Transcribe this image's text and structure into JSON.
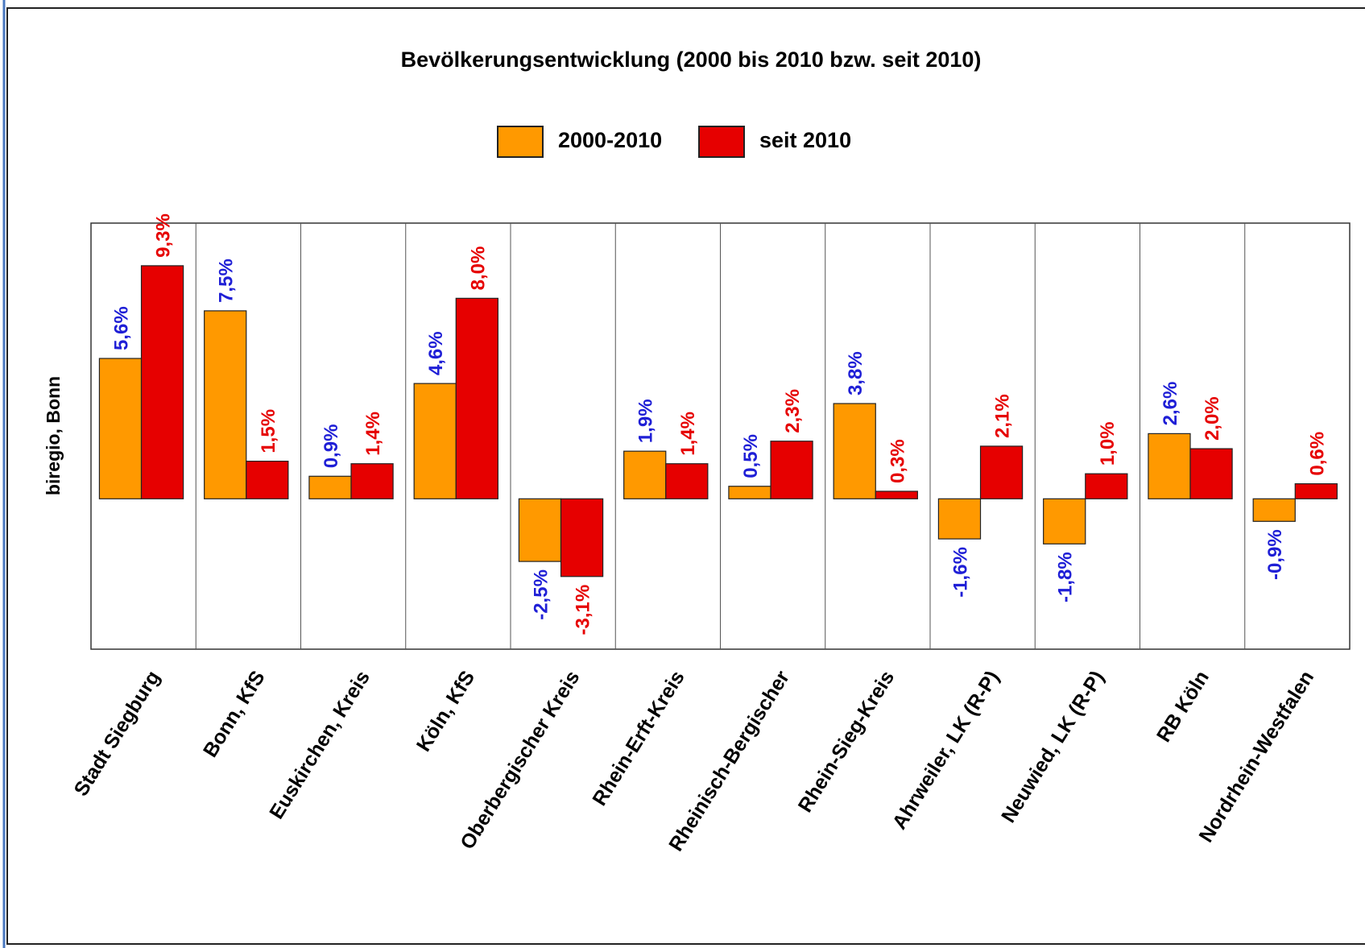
{
  "chart_data": {
    "type": "bar",
    "title": "Bevölkerungsentwicklung (2000 bis 2010 bzw. seit 2010)",
    "y_label": "biregio, Bonn",
    "categories": [
      "Stadt Siegburg",
      "Bonn, KfS",
      "Euskirchen, Kreis",
      "Köln, KfS",
      "Oberbergischer Kreis",
      "Rhein-Erft-Kreis",
      "Rheinisch-Bergischer",
      "Rhein-Sieg-Kreis",
      "Ahrweiler, LK (R-P)",
      "Neuwied, LK (R-P)",
      "RB Köln",
      "Nordrhein-Westfalen"
    ],
    "series": [
      {
        "name": "2000-2010",
        "color": "#ff9900",
        "label_color": "#1f1fd6",
        "values": [
          5.6,
          7.5,
          0.9,
          4.6,
          -2.5,
          1.9,
          0.5,
          3.8,
          -1.6,
          -1.8,
          2.6,
          -0.9
        ],
        "value_labels": [
          "5,6%",
          "7,5%",
          "0,9%",
          "4,6%",
          "-2,5%",
          "1,9%",
          "0,5%",
          "3,8%",
          "-1,6%",
          "-1,8%",
          "2,6%",
          "-0,9%"
        ]
      },
      {
        "name": "seit 2010",
        "color": "#e60000",
        "label_color": "#e60000",
        "values": [
          9.3,
          1.5,
          1.4,
          8.0,
          -3.1,
          1.4,
          2.3,
          0.3,
          2.1,
          1.0,
          2.0,
          0.6
        ],
        "value_labels": [
          "9,3%",
          "1,5%",
          "1,4%",
          "8,0%",
          "-3,1%",
          "1,4%",
          "2,3%",
          "0,3%",
          "2,1%",
          "1,0%",
          "2,0%",
          "0,6%"
        ]
      }
    ],
    "ylim": [
      -6,
      11
    ]
  }
}
